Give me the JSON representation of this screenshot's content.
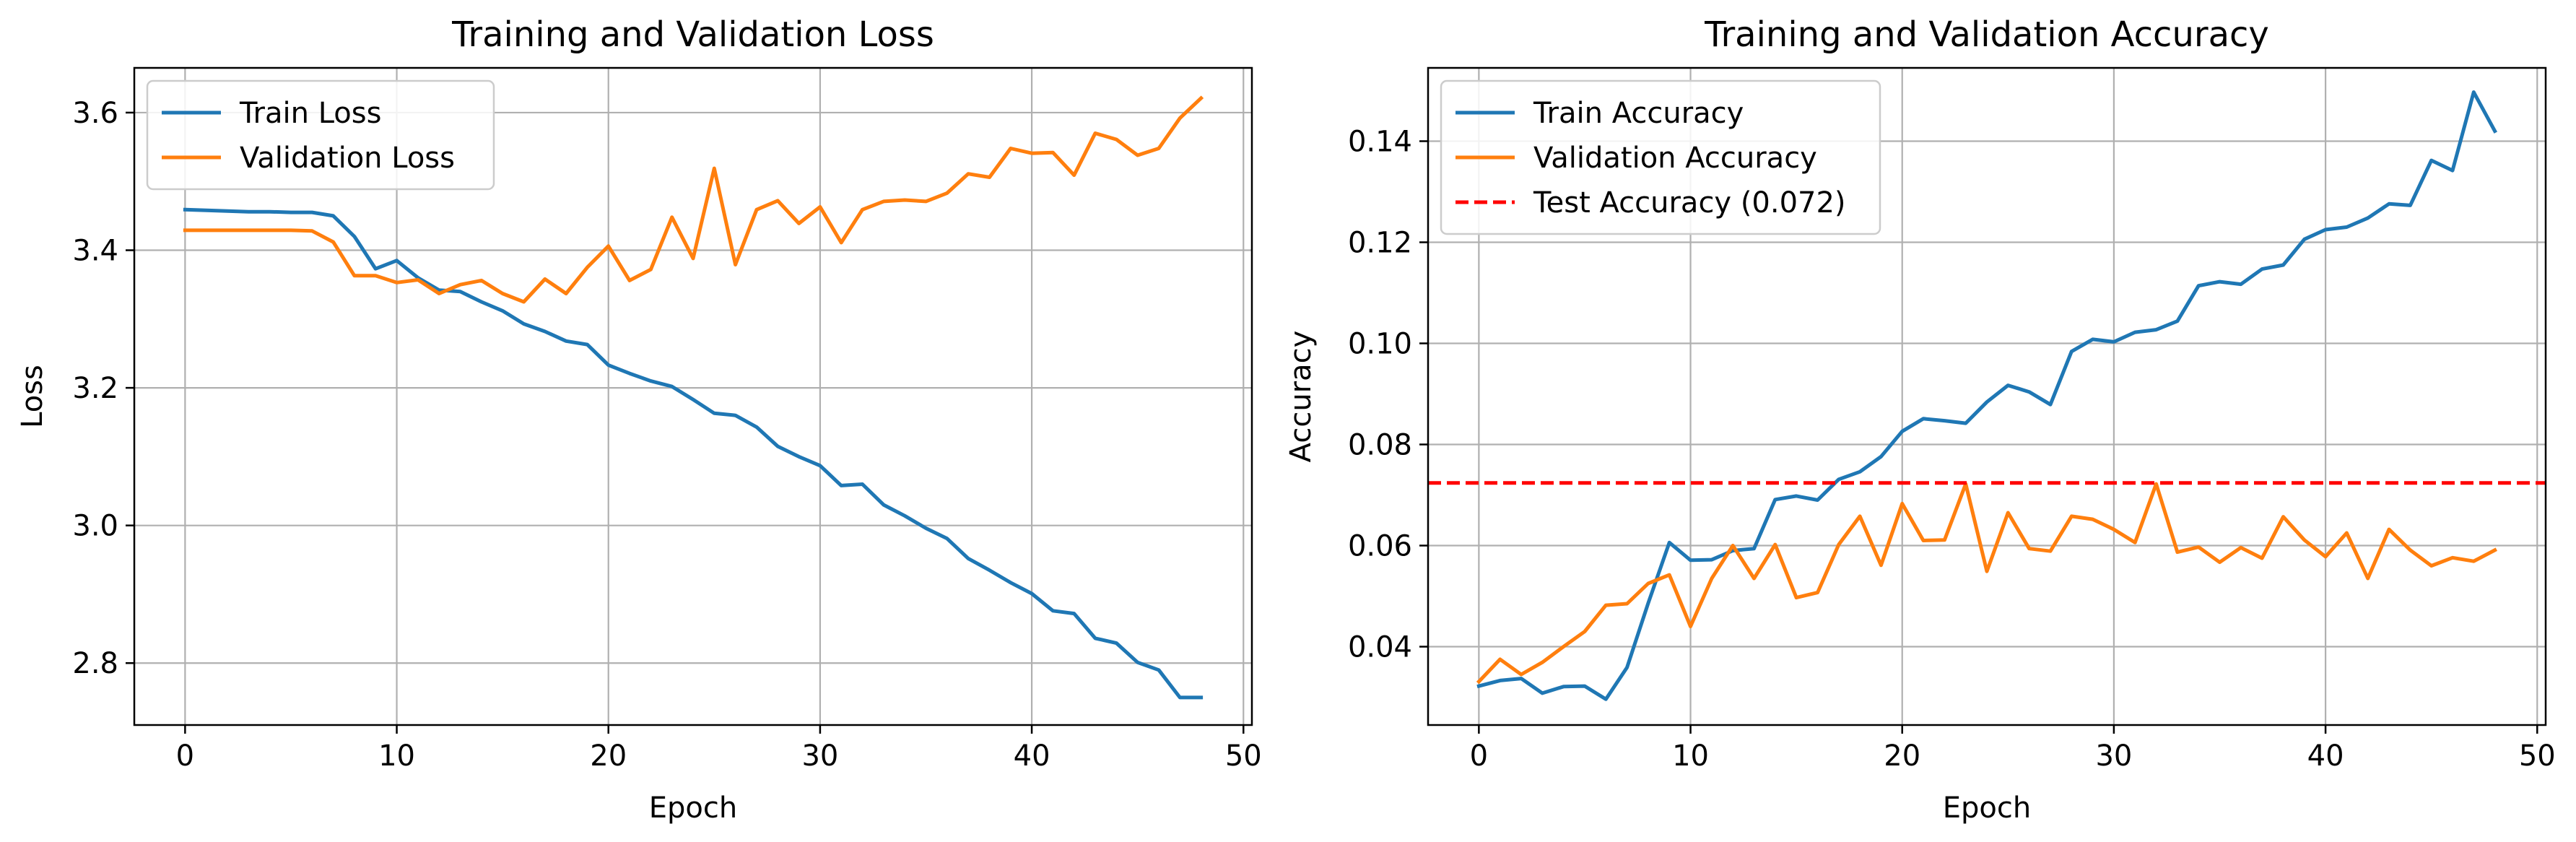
{
  "colors": {
    "train": "#1f77b4",
    "validation": "#ff7f0e",
    "test": "#ff0000",
    "grid": "#b0b0b0",
    "legend_border": "#cccccc"
  },
  "chart_data": [
    {
      "type": "line",
      "title": "Training and Validation Loss",
      "xlabel": "Epoch",
      "ylabel": "Loss",
      "xlim": [
        -2.4,
        50.4
      ],
      "ylim": [
        2.71,
        3.665
      ],
      "xticks": [
        0,
        10,
        20,
        30,
        40,
        50
      ],
      "xtick_labels": [
        "0",
        "10",
        "20",
        "30",
        "40",
        "50"
      ],
      "yticks": [
        2.8,
        3.0,
        3.2,
        3.4,
        3.6
      ],
      "ytick_labels": [
        "2.8",
        "3.0",
        "3.2",
        "3.4",
        "3.6"
      ],
      "grid": true,
      "legend_position": "top-left",
      "x": [
        0,
        1,
        2,
        3,
        4,
        5,
        6,
        7,
        8,
        9,
        10,
        11,
        12,
        13,
        14,
        15,
        16,
        17,
        18,
        19,
        20,
        21,
        22,
        23,
        24,
        25,
        26,
        27,
        28,
        29,
        30,
        31,
        32,
        33,
        34,
        35,
        36,
        37,
        38,
        39,
        40,
        41,
        42,
        43,
        44,
        45,
        46,
        47,
        48
      ],
      "series": [
        {
          "name": "Train Loss",
          "color_key": "train",
          "dashed": false,
          "values": [
            3.459,
            3.458,
            3.457,
            3.456,
            3.456,
            3.455,
            3.455,
            3.45,
            3.42,
            3.373,
            3.385,
            3.36,
            3.342,
            3.34,
            3.325,
            3.312,
            3.293,
            3.282,
            3.268,
            3.263,
            3.233,
            3.221,
            3.21,
            3.202,
            3.183,
            3.163,
            3.16,
            3.143,
            3.115,
            3.1,
            3.087,
            3.058,
            3.06,
            3.03,
            3.014,
            2.996,
            2.981,
            2.952,
            2.935,
            2.917,
            2.901,
            2.876,
            2.872,
            2.836,
            2.829,
            2.801,
            2.79,
            2.75,
            2.75
          ]
        },
        {
          "name": "Validation Loss",
          "color_key": "validation",
          "dashed": false,
          "values": [
            3.429,
            3.429,
            3.429,
            3.429,
            3.429,
            3.429,
            3.428,
            3.412,
            3.363,
            3.363,
            3.353,
            3.357,
            3.337,
            3.35,
            3.356,
            3.337,
            3.325,
            3.358,
            3.337,
            3.375,
            3.406,
            3.356,
            3.372,
            3.448,
            3.388,
            3.519,
            3.379,
            3.459,
            3.472,
            3.439,
            3.463,
            3.411,
            3.459,
            3.471,
            3.473,
            3.471,
            3.483,
            3.511,
            3.506,
            3.548,
            3.541,
            3.542,
            3.509,
            3.57,
            3.561,
            3.538,
            3.548,
            3.592,
            3.621
          ]
        }
      ]
    },
    {
      "type": "line",
      "title": "Training and Validation Accuracy",
      "xlabel": "Epoch",
      "ylabel": "Accuracy",
      "xlim": [
        -2.4,
        50.4
      ],
      "ylim": [
        0.0245,
        0.1545
      ],
      "xticks": [
        0,
        10,
        20,
        30,
        40,
        50
      ],
      "xtick_labels": [
        "0",
        "10",
        "20",
        "30",
        "40",
        "50"
      ],
      "yticks": [
        0.04,
        0.06,
        0.08,
        0.1,
        0.12,
        0.14
      ],
      "ytick_labels": [
        "0.04",
        "0.06",
        "0.08",
        "0.10",
        "0.12",
        "0.14"
      ],
      "grid": true,
      "legend_position": "top-left",
      "x": [
        0,
        1,
        2,
        3,
        4,
        5,
        6,
        7,
        8,
        9,
        10,
        11,
        12,
        13,
        14,
        15,
        16,
        17,
        18,
        19,
        20,
        21,
        22,
        23,
        24,
        25,
        26,
        27,
        28,
        29,
        30,
        31,
        32,
        33,
        34,
        35,
        36,
        37,
        38,
        39,
        40,
        41,
        42,
        43,
        44,
        45,
        46,
        47,
        48
      ],
      "series": [
        {
          "name": "Train Accuracy",
          "color_key": "train",
          "dashed": false,
          "values": [
            0.0322,
            0.0333,
            0.0337,
            0.0308,
            0.0321,
            0.0322,
            0.0296,
            0.0359,
            0.0486,
            0.0606,
            0.0571,
            0.0572,
            0.059,
            0.0594,
            0.0691,
            0.0698,
            0.069,
            0.0731,
            0.0746,
            0.0776,
            0.0826,
            0.0851,
            0.0847,
            0.0842,
            0.0884,
            0.0917,
            0.0904,
            0.0879,
            0.0984,
            0.1008,
            0.1003,
            0.1022,
            0.1027,
            0.1044,
            0.1114,
            0.1122,
            0.1117,
            0.1147,
            0.1155,
            0.1206,
            0.1225,
            0.123,
            0.1248,
            0.1276,
            0.1273,
            0.1362,
            0.1342,
            0.1497,
            0.142
          ]
        },
        {
          "name": "Validation Accuracy",
          "color_key": "validation",
          "dashed": false,
          "values": [
            0.0331,
            0.0375,
            0.0345,
            0.0369,
            0.04,
            0.043,
            0.0482,
            0.0485,
            0.0525,
            0.0542,
            0.044,
            0.0535,
            0.06,
            0.0535,
            0.0602,
            0.0497,
            0.0507,
            0.0602,
            0.0658,
            0.0561,
            0.0683,
            0.061,
            0.0611,
            0.0722,
            0.0549,
            0.0665,
            0.0594,
            0.0589,
            0.0658,
            0.0652,
            0.0632,
            0.0606,
            0.0722,
            0.0587,
            0.0597,
            0.0567,
            0.0596,
            0.0575,
            0.0657,
            0.0611,
            0.0578,
            0.0625,
            0.0535,
            0.0632,
            0.0591,
            0.056,
            0.0576,
            0.0569,
            0.0591
          ]
        },
        {
          "name": "Test Accuracy (0.072)",
          "color_key": "test",
          "dashed": true,
          "hline": 0.0724
        }
      ]
    }
  ]
}
